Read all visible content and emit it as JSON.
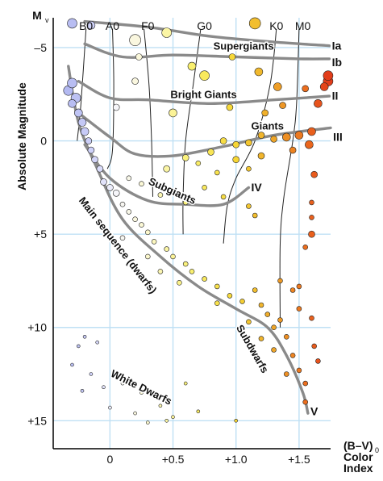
{
  "chart_data": {
    "type": "scatter",
    "title": "",
    "y_axis": {
      "label": "Absolute Magnitude",
      "symbol": "M",
      "symbol_subscript": "v",
      "range": [
        16.5,
        -6.6
      ],
      "inverted": true,
      "ticks": [
        {
          "value": -5,
          "label": "–5"
        },
        {
          "value": 0,
          "label": "0"
        },
        {
          "value": 5,
          "label": "+5"
        },
        {
          "value": 10,
          "label": "+10"
        },
        {
          "value": 15,
          "label": "+15"
        }
      ]
    },
    "x_axis": {
      "label_lines": [
        "(B–V)",
        "Color",
        "Index"
      ],
      "label_subscript": "0",
      "range": [
        -0.45,
        1.75
      ],
      "ticks": [
        {
          "value": 0,
          "label": "0"
        },
        {
          "value": 0.5,
          "label": "+0.5"
        },
        {
          "value": 1.0,
          "label": "+1.0"
        },
        {
          "value": 1.5,
          "label": "+1.5"
        }
      ]
    },
    "grid": true,
    "spectral_types": [
      {
        "label": "B0",
        "color_index": -0.19,
        "line": [
          [
            -0.19,
            -6.0
          ],
          [
            -0.23,
            -2.0
          ],
          [
            -0.26,
            0.0
          ]
        ]
      },
      {
        "label": "A0",
        "color_index": 0.02,
        "line": [
          [
            0.02,
            -6.0
          ],
          [
            0.03,
            -3.0
          ],
          [
            0.02,
            0.5
          ],
          [
            -0.02,
            1.5
          ]
        ]
      },
      {
        "label": "F0",
        "color_index": 0.3,
        "line": [
          [
            0.27,
            -6.0
          ],
          [
            0.31,
            -3.0
          ],
          [
            0.33,
            0.0
          ],
          [
            0.34,
            3.0
          ]
        ]
      },
      {
        "label": "G0",
        "color_index": 0.75,
        "line": [
          [
            0.72,
            -6.0
          ],
          [
            0.66,
            -3.0
          ],
          [
            0.6,
            0.0
          ],
          [
            0.58,
            3.0
          ],
          [
            0.58,
            5.0
          ]
        ]
      },
      {
        "label": "K0",
        "color_index": 1.32,
        "line": [
          [
            1.32,
            -6.0
          ],
          [
            1.27,
            -3.0
          ],
          [
            1.15,
            0.0
          ],
          [
            1.0,
            2.0
          ],
          [
            0.93,
            3.5
          ],
          [
            0.9,
            5.5
          ]
        ]
      },
      {
        "label": "M0",
        "color_index": 1.53,
        "line": [
          [
            1.5,
            -6.0
          ],
          [
            1.48,
            -2.0
          ],
          [
            1.45,
            0.0
          ],
          [
            1.38,
            3.0
          ],
          [
            1.35,
            5.5
          ],
          [
            1.35,
            10.0
          ]
        ]
      }
    ],
    "sequences": [
      {
        "label": "Supergiants",
        "roman": "Ia",
        "curve": [
          [
            -0.2,
            -6.4
          ],
          [
            0.3,
            -6.1
          ],
          [
            0.8,
            -5.6
          ],
          [
            1.3,
            -5.3
          ],
          [
            1.74,
            -5.1
          ]
        ]
      },
      {
        "label": "",
        "roman": "Ib",
        "curve": [
          [
            -0.2,
            -5.2
          ],
          [
            0.1,
            -4.5
          ],
          [
            0.5,
            -4.6
          ],
          [
            1.0,
            -4.5
          ],
          [
            1.5,
            -4.4
          ],
          [
            1.74,
            -4.4
          ]
        ]
      },
      {
        "label": "Bright Giants",
        "roman": "II",
        "curve": [
          [
            -0.25,
            -3.2
          ],
          [
            0.0,
            -2.3
          ],
          [
            0.3,
            -2.2
          ],
          [
            0.8,
            -2.0
          ],
          [
            1.3,
            -2.2
          ],
          [
            1.74,
            -2.4
          ]
        ]
      },
      {
        "label": "Giants",
        "roman": "III",
        "curve": [
          [
            -0.25,
            -1.5
          ],
          [
            0.0,
            -0.2
          ],
          [
            0.2,
            0.7
          ],
          [
            0.5,
            0.8
          ],
          [
            0.9,
            0.3
          ],
          [
            1.3,
            -0.3
          ],
          [
            1.75,
            -0.7
          ]
        ]
      },
      {
        "label": "Subgiants",
        "roman": "IV",
        "curve": [
          [
            -0.2,
            0.2
          ],
          [
            0.0,
            2.0
          ],
          [
            0.3,
            3.2
          ],
          [
            0.6,
            3.4
          ],
          [
            0.9,
            3.4
          ],
          [
            1.1,
            2.5
          ]
        ]
      },
      {
        "label": "Main sequence (dwarfs)",
        "roman": "V",
        "curve": [
          [
            -0.33,
            -4.0
          ],
          [
            -0.25,
            -1.0
          ],
          [
            -0.1,
            1.5
          ],
          [
            0.1,
            4.2
          ],
          [
            0.4,
            6.2
          ],
          [
            0.7,
            7.8
          ],
          [
            1.0,
            9.0
          ],
          [
            1.25,
            10.0
          ],
          [
            1.4,
            11.5
          ],
          [
            1.53,
            13.5
          ],
          [
            1.57,
            14.6
          ]
        ]
      },
      {
        "label": "Subdwarfs",
        "roman": "",
        "curve": []
      },
      {
        "label": "White Dwarfs",
        "roman": "",
        "curve": []
      }
    ],
    "stars": [
      {
        "bv": -0.3,
        "m": -6.3,
        "s": 6
      },
      {
        "bv": -0.15,
        "m": -6.2,
        "s": 5
      },
      {
        "bv": 0.2,
        "m": -5.4,
        "s": 7
      },
      {
        "bv": 0.45,
        "m": -5.8,
        "s": 6
      },
      {
        "bv": 1.15,
        "m": -6.3,
        "s": 7
      },
      {
        "bv": 1.73,
        "m": -3.2,
        "s": 6
      },
      {
        "bv": 1.7,
        "m": -2.9,
        "s": 5
      },
      {
        "bv": 0.23,
        "m": -4.5,
        "s": 4
      },
      {
        "bv": 0.65,
        "m": -4.0,
        "s": 5
      },
      {
        "bv": 0.97,
        "m": -4.5,
        "s": 4
      },
      {
        "bv": 0.75,
        "m": -3.5,
        "s": 6
      },
      {
        "bv": 1.18,
        "m": -3.7,
        "s": 5
      },
      {
        "bv": 0.2,
        "m": -3.2,
        "s": 4
      },
      {
        "bv": 1.73,
        "m": -3.5,
        "s": 6
      },
      {
        "bv": 1.33,
        "m": -2.9,
        "s": 5
      },
      {
        "bv": 1.55,
        "m": -2.8,
        "s": 4
      },
      {
        "bv": 1.65,
        "m": -2.0,
        "s": 5
      },
      {
        "bv": 0.5,
        "m": -1.5,
        "s": 5
      },
      {
        "bv": 0.05,
        "m": -1.8,
        "s": 4
      },
      {
        "bv": 1.23,
        "m": -1.5,
        "s": 4
      },
      {
        "bv": 0.95,
        "m": -1.8,
        "s": 4
      },
      {
        "bv": 1.37,
        "m": -1.9,
        "s": 4
      },
      {
        "bv": 0.9,
        "m": 0.0,
        "s": 4
      },
      {
        "bv": 1.0,
        "m": 0.2,
        "s": 4
      },
      {
        "bv": 1.1,
        "m": 0.1,
        "s": 4
      },
      {
        "bv": 1.2,
        "m": -0.3,
        "s": 4
      },
      {
        "bv": 1.3,
        "m": -0.1,
        "s": 4
      },
      {
        "bv": 1.4,
        "m": -0.2,
        "s": 5
      },
      {
        "bv": 1.5,
        "m": -0.3,
        "s": 5
      },
      {
        "bv": 1.6,
        "m": -0.5,
        "s": 5
      },
      {
        "bv": 1.45,
        "m": 0.5,
        "s": 4
      },
      {
        "bv": 1.2,
        "m": 0.8,
        "s": 4
      },
      {
        "bv": 0.8,
        "m": 0.6,
        "s": 4
      },
      {
        "bv": 0.7,
        "m": 1.2,
        "s": 3
      },
      {
        "bv": 1.0,
        "m": 1.0,
        "s": 4
      },
      {
        "bv": 0.6,
        "m": 0.9,
        "s": 4
      },
      {
        "bv": 0.45,
        "m": 1.5,
        "s": 4
      },
      {
        "bv": 1.58,
        "m": 0.2,
        "s": 5
      },
      {
        "bv": 1.62,
        "m": 1.8,
        "s": 4
      },
      {
        "bv": 0.85,
        "m": 1.7,
        "s": 3
      },
      {
        "bv": 1.1,
        "m": 1.5,
        "s": 3
      },
      {
        "bv": 1.6,
        "m": 3.3,
        "s": 3
      },
      {
        "bv": 1.6,
        "m": 4.1,
        "s": 3
      },
      {
        "bv": 1.6,
        "m": 5.0,
        "s": 4
      },
      {
        "bv": 1.55,
        "m": 5.7,
        "s": 3
      },
      {
        "bv": 1.1,
        "m": 3.5,
        "s": 3
      },
      {
        "bv": 1.15,
        "m": 4.0,
        "s": 3
      },
      {
        "bv": 0.75,
        "m": 2.5,
        "s": 3
      },
      {
        "bv": 0.6,
        "m": 3.3,
        "s": 3
      },
      {
        "bv": 0.9,
        "m": 3.0,
        "s": 3
      },
      {
        "bv": 0.4,
        "m": 2.9,
        "s": 3
      },
      {
        "bv": 0.25,
        "m": 2.3,
        "s": 3
      },
      {
        "bv": 0.15,
        "m": 2.0,
        "s": 3
      },
      {
        "bv": -0.33,
        "m": -2.7,
        "s": 6
      },
      {
        "bv": -0.3,
        "m": -3.1,
        "s": 6
      },
      {
        "bv": -0.27,
        "m": -2.3,
        "s": 6
      },
      {
        "bv": -0.3,
        "m": -2.0,
        "s": 5
      },
      {
        "bv": -0.25,
        "m": -1.5,
        "s": 5
      },
      {
        "bv": -0.22,
        "m": -1.0,
        "s": 5
      },
      {
        "bv": -0.2,
        "m": -0.5,
        "s": 5
      },
      {
        "bv": -0.17,
        "m": 0.0,
        "s": 4
      },
      {
        "bv": -0.15,
        "m": 0.5,
        "s": 4
      },
      {
        "bv": -0.12,
        "m": 1.0,
        "s": 4
      },
      {
        "bv": -0.08,
        "m": 1.5,
        "s": 4
      },
      {
        "bv": -0.05,
        "m": 2.2,
        "s": 4
      },
      {
        "bv": 0.0,
        "m": 2.5,
        "s": 4
      },
      {
        "bv": 0.05,
        "m": 2.8,
        "s": 4
      },
      {
        "bv": 0.1,
        "m": 3.4,
        "s": 3
      },
      {
        "bv": 0.15,
        "m": 3.8,
        "s": 3
      },
      {
        "bv": 0.2,
        "m": 4.2,
        "s": 3
      },
      {
        "bv": 0.25,
        "m": 4.5,
        "s": 3
      },
      {
        "bv": 0.3,
        "m": 4.9,
        "s": 3
      },
      {
        "bv": 0.35,
        "m": 5.4,
        "s": 3
      },
      {
        "bv": 0.45,
        "m": 5.8,
        "s": 3
      },
      {
        "bv": 0.5,
        "m": 6.2,
        "s": 3
      },
      {
        "bv": 0.6,
        "m": 6.6,
        "s": 3
      },
      {
        "bv": 0.65,
        "m": 7.0,
        "s": 3
      },
      {
        "bv": 0.75,
        "m": 7.4,
        "s": 3
      },
      {
        "bv": 0.85,
        "m": 7.8,
        "s": 3
      },
      {
        "bv": 0.95,
        "m": 8.3,
        "s": 3
      },
      {
        "bv": 1.05,
        "m": 8.6,
        "s": 3
      },
      {
        "bv": 1.15,
        "m": 8.0,
        "s": 3
      },
      {
        "bv": 1.25,
        "m": 9.3,
        "s": 3
      },
      {
        "bv": 1.3,
        "m": 10.0,
        "s": 3
      },
      {
        "bv": 1.4,
        "m": 10.5,
        "s": 3
      },
      {
        "bv": 1.45,
        "m": 11.5,
        "s": 3
      },
      {
        "bv": 1.5,
        "m": 12.3,
        "s": 3
      },
      {
        "bv": 1.55,
        "m": 13.0,
        "s": 3
      },
      {
        "bv": 1.35,
        "m": 7.5,
        "s": 3
      },
      {
        "bv": 1.45,
        "m": 8.0,
        "s": 3
      },
      {
        "bv": 1.5,
        "m": 9.0,
        "s": 3
      },
      {
        "bv": 1.6,
        "m": 9.5,
        "s": 3
      },
      {
        "bv": 1.62,
        "m": 11.0,
        "s": 3
      },
      {
        "bv": 1.65,
        "m": 11.8,
        "s": 3
      },
      {
        "bv": 1.3,
        "m": 11.2,
        "s": 3
      },
      {
        "bv": 1.2,
        "m": 10.6,
        "s": 3
      },
      {
        "bv": 1.1,
        "m": 9.7,
        "s": 3
      },
      {
        "bv": 0.85,
        "m": 8.7,
        "s": 3
      },
      {
        "bv": 0.55,
        "m": 7.6,
        "s": 3
      },
      {
        "bv": 0.4,
        "m": 7.0,
        "s": 3
      },
      {
        "bv": 0.3,
        "m": 6.2,
        "s": 3
      },
      {
        "bv": 0.1,
        "m": 5.2,
        "s": 3
      },
      {
        "bv": 1.5,
        "m": 7.8,
        "s": 3
      },
      {
        "bv": 1.2,
        "m": 8.8,
        "s": 3
      },
      {
        "bv": 1.4,
        "m": 12.5,
        "s": 3
      },
      {
        "bv": 1.55,
        "m": 14.0,
        "s": 3
      },
      {
        "bv": 1.35,
        "m": 9.6,
        "s": 3
      },
      {
        "bv": -0.2,
        "m": 10.5,
        "s": 2
      },
      {
        "bv": -0.25,
        "m": 11.0,
        "s": 2
      },
      {
        "bv": -0.1,
        "m": 10.8,
        "s": 2
      },
      {
        "bv": -0.3,
        "m": 12.0,
        "s": 2
      },
      {
        "bv": -0.15,
        "m": 12.5,
        "s": 2
      },
      {
        "bv": -0.05,
        "m": 13.2,
        "s": 2
      },
      {
        "bv": 0.1,
        "m": 13.0,
        "s": 2
      },
      {
        "bv": 0.25,
        "m": 13.5,
        "s": 2
      },
      {
        "bv": 0.4,
        "m": 14.2,
        "s": 2
      },
      {
        "bv": 0.5,
        "m": 14.8,
        "s": 2
      },
      {
        "bv": 0.6,
        "m": 13.0,
        "s": 2
      },
      {
        "bv": 0.7,
        "m": 14.5,
        "s": 2
      },
      {
        "bv": 0.45,
        "m": 15.0,
        "s": 2
      },
      {
        "bv": 1.0,
        "m": 15.0,
        "s": 2
      },
      {
        "bv": 0.2,
        "m": 14.6,
        "s": 2
      },
      {
        "bv": 0.3,
        "m": 15.1,
        "s": 2
      },
      {
        "bv": -0.22,
        "m": 13.4,
        "s": 2
      },
      {
        "bv": 0.0,
        "m": 14.3,
        "s": 2
      }
    ]
  }
}
